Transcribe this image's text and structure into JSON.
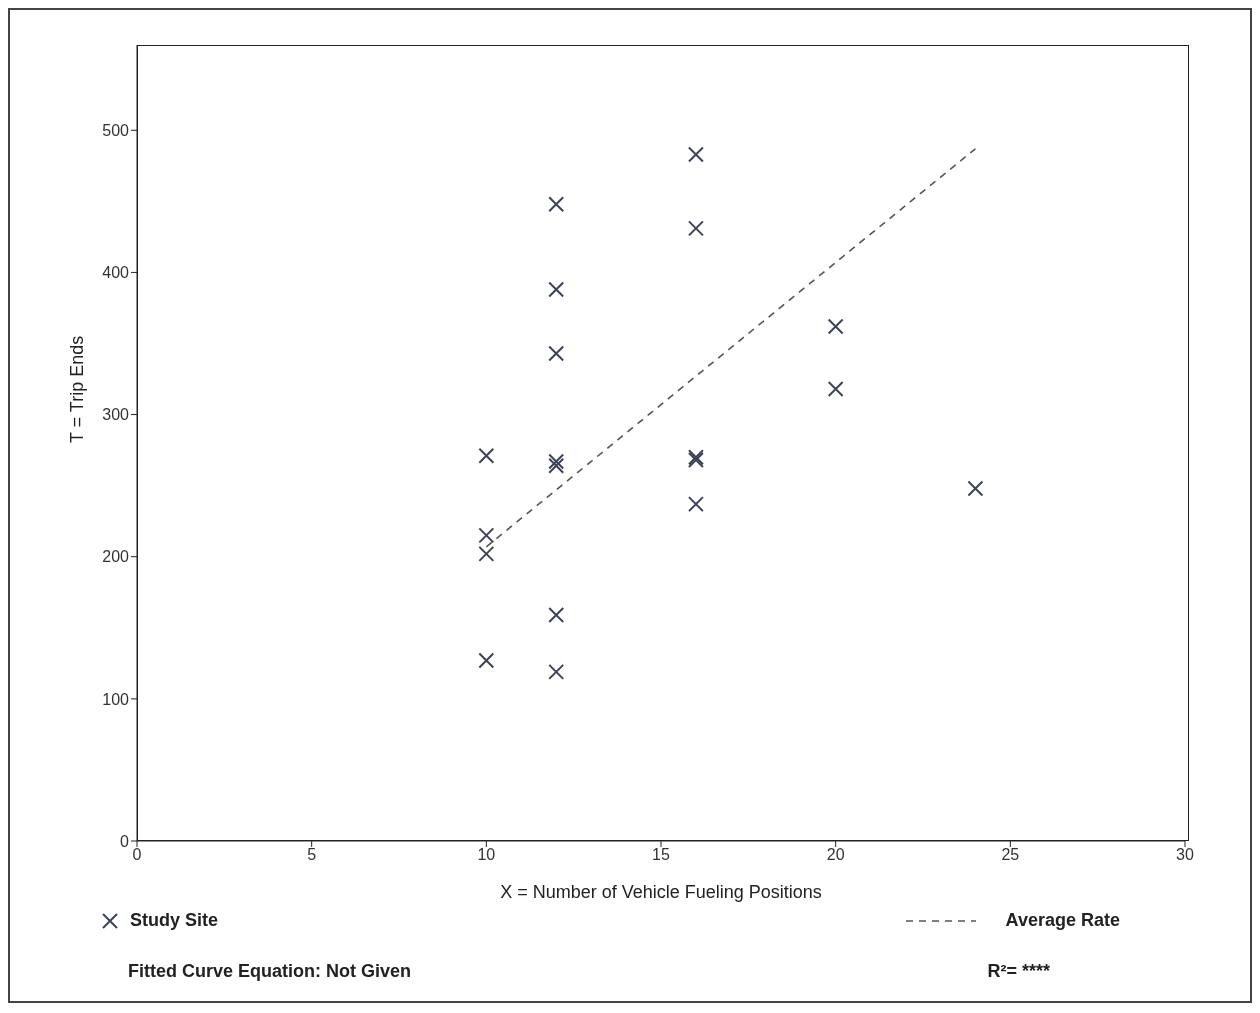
{
  "chart_data": {
    "type": "scatter",
    "xlabel": "X = Number of Vehicle Fueling Positions",
    "ylabel": "T = Trip Ends",
    "xlim": [
      0,
      30
    ],
    "xticks": [
      0,
      5,
      10,
      15,
      20,
      25,
      30
    ],
    "ylim": [
      0,
      560
    ],
    "yticks": [
      0,
      100,
      200,
      300,
      400,
      500
    ],
    "grid": false,
    "legend": "bottom",
    "series": [
      {
        "name": "Study Site",
        "marker": "cross",
        "color": "#3d4457",
        "x": [
          10,
          10,
          10,
          10,
          12,
          12,
          12,
          12,
          12,
          12,
          12,
          16,
          16,
          16,
          16,
          16,
          20,
          20,
          24
        ],
        "values": [
          271,
          215,
          202,
          127,
          448,
          388,
          343,
          267,
          264,
          159,
          119,
          483,
          431,
          270,
          268,
          237,
          362,
          318,
          248
        ]
      },
      {
        "name": "Average Rate",
        "type": "line",
        "line_style": "dashed",
        "marker": "none",
        "color": "#555555",
        "x": [
          10,
          24
        ],
        "values": [
          207,
          487
        ]
      }
    ],
    "annotations": [
      "Fitted Curve Equation: Not Given",
      "R²= ****"
    ]
  }
}
